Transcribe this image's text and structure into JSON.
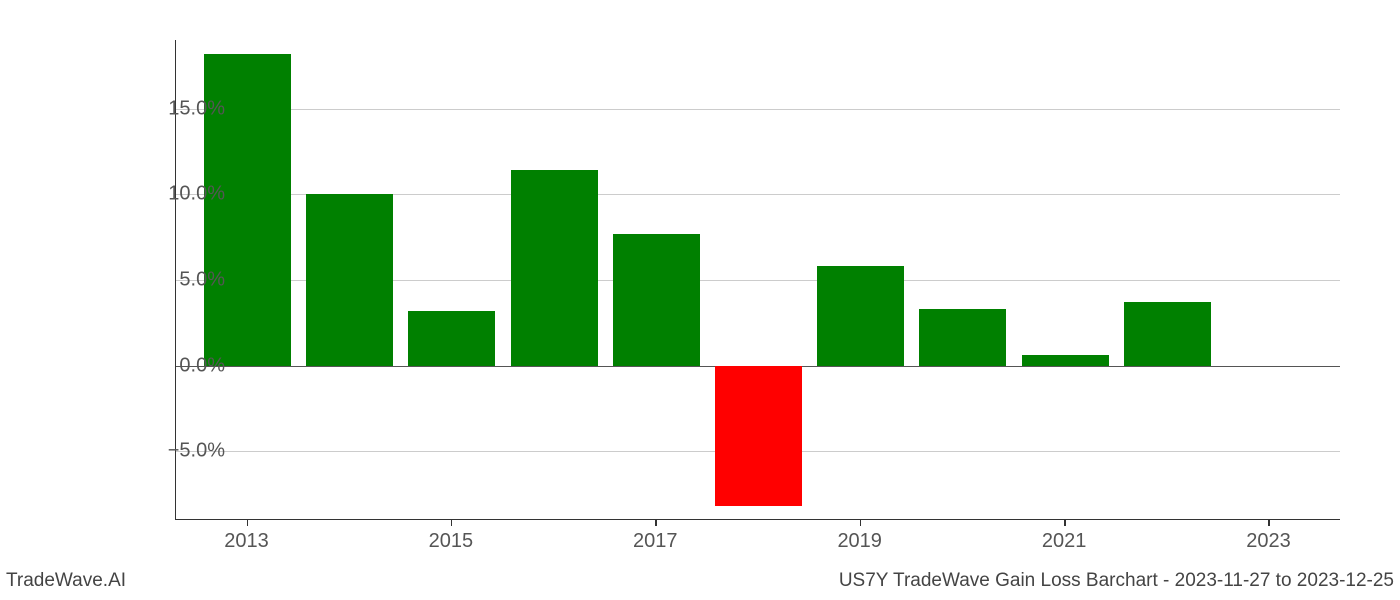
{
  "chart": {
    "type": "bar",
    "years": [
      2013,
      2014,
      2015,
      2016,
      2017,
      2018,
      2019,
      2020,
      2021,
      2022
    ],
    "values": [
      18.2,
      10.0,
      3.2,
      11.4,
      7.7,
      -8.2,
      5.8,
      3.3,
      0.6,
      3.7
    ],
    "bar_colors": [
      "#008000",
      "#008000",
      "#008000",
      "#008000",
      "#008000",
      "#ff0000",
      "#008000",
      "#008000",
      "#008000",
      "#008000"
    ],
    "ylim_min": -9.0,
    "ylim_max": 19.0,
    "y_ticks": [
      -5.0,
      0.0,
      5.0,
      10.0,
      15.0
    ],
    "y_tick_labels": [
      "−5.0%",
      "0.0%",
      "5.0%",
      "10.0%",
      "15.0%"
    ],
    "x_ticks": [
      2013,
      2015,
      2017,
      2019,
      2021,
      2023
    ],
    "x_tick_labels": [
      "2013",
      "2015",
      "2017",
      "2019",
      "2021",
      "2023"
    ],
    "x_min": 2012.3,
    "x_max": 2023.7,
    "bar_width_years": 0.85,
    "grid_color": "#cccccc",
    "axis_color": "#333333",
    "label_color": "#555555",
    "label_fontsize": 20,
    "background_color": "#ffffff"
  },
  "footer": {
    "left": "TradeWave.AI",
    "right": "US7Y TradeWave Gain Loss Barchart - 2023-11-27 to 2023-12-25"
  }
}
